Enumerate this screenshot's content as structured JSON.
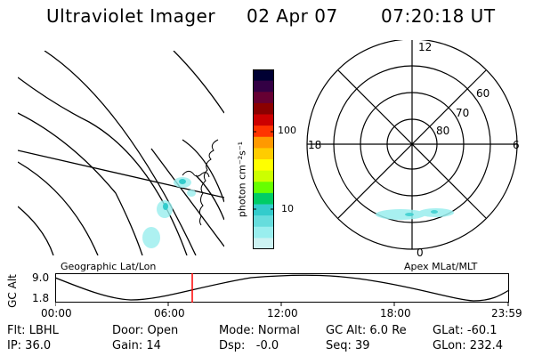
{
  "header": {
    "instrument": "Ultraviolet Imager",
    "date": "02 Apr 07",
    "time": "07:20:18 UT"
  },
  "colorbar": {
    "unit_label": "photon cm⁻²s⁻¹",
    "ticks": [
      "100",
      "10"
    ],
    "scale": "log",
    "colors": [
      "#000033",
      "#330044",
      "#660033",
      "#8b0000",
      "#cc0000",
      "#ff3300",
      "#ff9900",
      "#ffcc00",
      "#ffff00",
      "#ccff00",
      "#66ff00",
      "#00cc66",
      "#33cccc",
      "#66dddd",
      "#99eeee",
      "#ccf2f2"
    ]
  },
  "geo_panel": {
    "label": "Geographic Lat/Lon"
  },
  "polar_panel": {
    "label": "Apex MLat/MLT",
    "mlt_labels": {
      "top": "12",
      "left": "18",
      "right": "6",
      "bottom": "0"
    },
    "lat_labels": [
      "60",
      "70",
      "80"
    ]
  },
  "altitude_plot": {
    "ylabel": "GC Alt",
    "ytick_top": "9.0",
    "ytick_bottom": "1.8",
    "xticks": [
      "00:00",
      "06:00",
      "12:00",
      "18:00",
      "23:59"
    ],
    "marker_color": "#ff0000"
  },
  "info": {
    "flt": "Flt: LBHL",
    "ip": "IP: 36.0",
    "door": "Door: Open",
    "gain": "Gain: 14",
    "mode": "Mode: Normal",
    "dsp": "Dsp:   -0.0",
    "gc_alt": "GC Alt: 6.0 Re",
    "seq": "Seq: 39",
    "glat": "GLat: -60.1",
    "glon": "GLon: 232.4"
  }
}
